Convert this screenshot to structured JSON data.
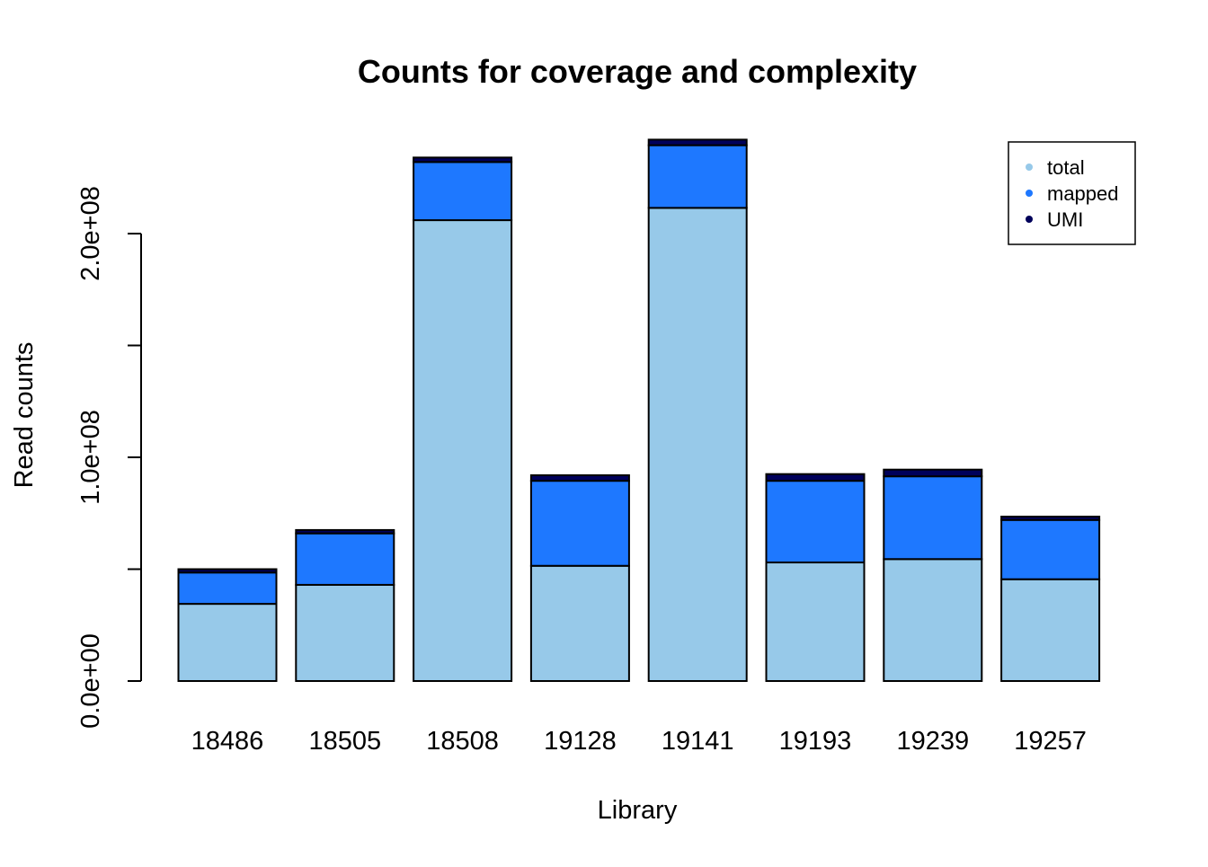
{
  "chart_data": {
    "type": "bar",
    "stacked": true,
    "title": "Counts for coverage and complexity",
    "xlabel": "Library",
    "ylabel": "Read counts",
    "categories": [
      "18486",
      "18505",
      "18508",
      "19128",
      "19141",
      "19193",
      "19239",
      "19257"
    ],
    "series": [
      {
        "name": "total",
        "color": "#97C9E9",
        "values": [
          34500000,
          43000000,
          206000000,
          51500000,
          211500000,
          53000000,
          54500000,
          45500000
        ]
      },
      {
        "name": "mapped",
        "color": "#1E78FF",
        "values": [
          14000000,
          23000000,
          26000000,
          38000000,
          28000000,
          36500000,
          37000000,
          26500000
        ]
      },
      {
        "name": "UMI",
        "color": "#00005A",
        "values": [
          1500000,
          1500000,
          2000000,
          2500000,
          2500000,
          3000000,
          3000000,
          1500000
        ]
      }
    ],
    "yticks": [
      {
        "value": 0,
        "label": "0.0e+00"
      },
      {
        "value": 50000000,
        "label": ""
      },
      {
        "value": 100000000,
        "label": "1.0e+08"
      },
      {
        "value": 150000000,
        "label": ""
      },
      {
        "value": 200000000,
        "label": "2.0e+08"
      }
    ],
    "ylim": [
      0,
      240000000
    ],
    "grid": false,
    "legend_position": "top-right"
  }
}
